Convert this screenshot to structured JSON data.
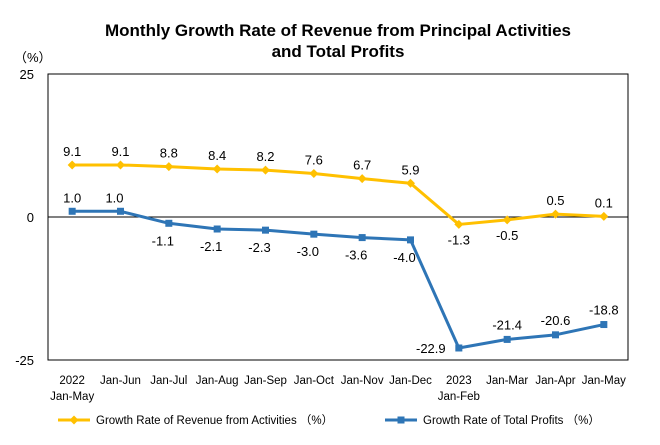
{
  "chart_data": {
    "type": "line",
    "title": [
      "Monthly Growth Rate of Revenue from Principal Activities",
      "and Total Profits"
    ],
    "ylabel": "（%）",
    "ylim": [
      -25,
      25
    ],
    "yticks": [
      "25",
      "0",
      "-25"
    ],
    "categories": [
      [
        "2022",
        "Jan-May"
      ],
      [
        "Jan-Jun"
      ],
      [
        "Jan-Jul"
      ],
      [
        "Jan-Aug"
      ],
      [
        "Jan-Sep"
      ],
      [
        "Jan-Oct"
      ],
      [
        "Jan-Nov"
      ],
      [
        "Jan-Dec"
      ],
      [
        "2023",
        "Jan-Feb"
      ],
      [
        "Jan-Mar"
      ],
      [
        "Jan-Apr"
      ],
      [
        "Jan-May"
      ]
    ],
    "series": [
      {
        "name": "Growth Rate of Revenue from Activities （%）",
        "color": "#FFC000",
        "marker": "diamond",
        "values": [
          9.1,
          9.1,
          8.8,
          8.4,
          8.2,
          7.6,
          6.7,
          5.9,
          -1.3,
          -0.5,
          0.5,
          0.1
        ],
        "labels": [
          "9.1",
          "9.1",
          "8.8",
          "8.4",
          "8.2",
          "7.6",
          "6.7",
          "5.9",
          "-1.3",
          "-0.5",
          "0.5",
          "0.1"
        ]
      },
      {
        "name": "Growth Rate of Total Profits （%）",
        "color": "#2E75B6",
        "marker": "square",
        "values": [
          1.0,
          1.0,
          -1.1,
          -2.1,
          -2.3,
          -3.0,
          -3.6,
          -4.0,
          -22.9,
          -21.4,
          -20.6,
          -18.8
        ],
        "labels": [
          "1.0",
          "1.0",
          "-1.1",
          "-2.1",
          "-2.3",
          "-3.0",
          "-3.6",
          "-4.0",
          "-22.9",
          "-21.4",
          "-20.6",
          "-18.8"
        ]
      }
    ],
    "legend_position": "bottom",
    "grid": false
  }
}
